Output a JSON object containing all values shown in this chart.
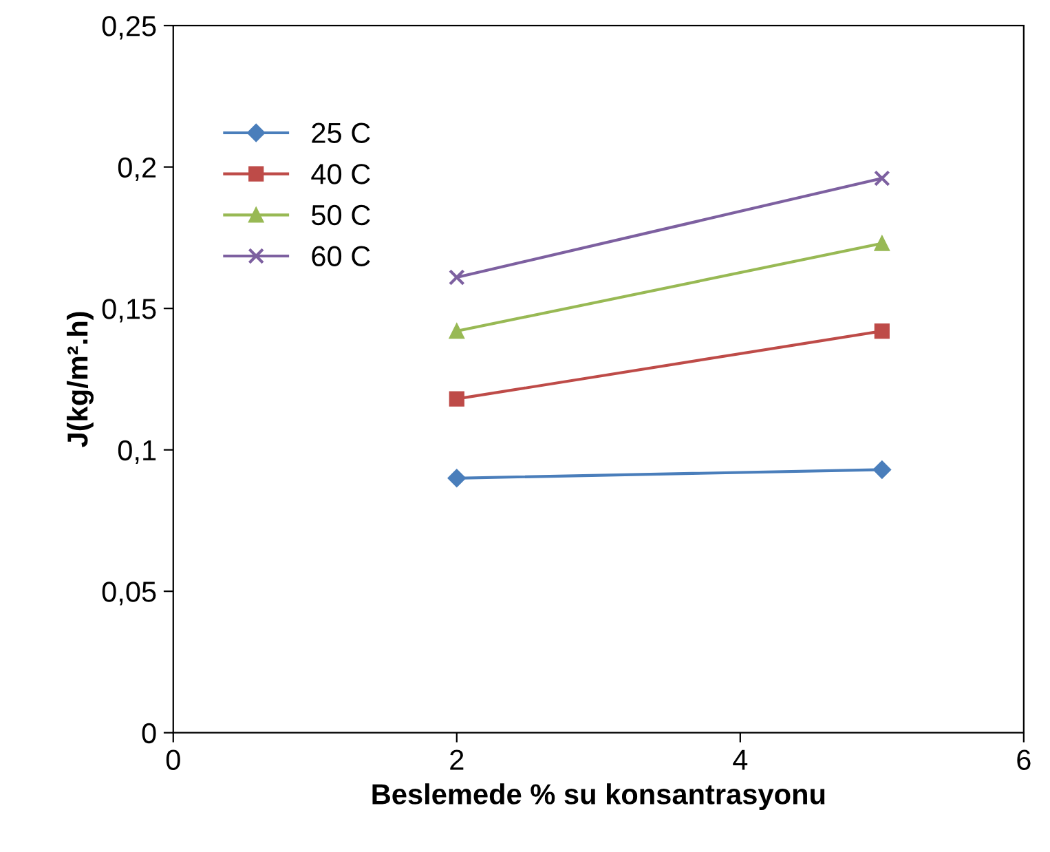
{
  "chart_data": {
    "type": "line",
    "xlabel": "Beslemede % su konsantrasyonu",
    "ylabel": "J(kg/m².h)",
    "x": [
      2,
      5
    ],
    "series": [
      {
        "name": "25 C",
        "color": "#4a7ebb",
        "marker": "diamond",
        "values": [
          0.09,
          0.093
        ]
      },
      {
        "name": "40 C",
        "color": "#be4b48",
        "marker": "square",
        "values": [
          0.118,
          0.142
        ]
      },
      {
        "name": "50 C",
        "color": "#98b954",
        "marker": "triangle",
        "values": [
          0.142,
          0.173
        ]
      },
      {
        "name": "60 C",
        "color": "#7d60a0",
        "marker": "cross",
        "values": [
          0.161,
          0.196
        ]
      }
    ],
    "xlim": [
      0,
      6
    ],
    "xticks": [
      0,
      2,
      4,
      6
    ],
    "ylim": [
      0,
      0.25
    ],
    "yticks": [
      {
        "value": 0,
        "label": "0"
      },
      {
        "value": 0.05,
        "label": "0,05"
      },
      {
        "value": 0.1,
        "label": "0,1"
      },
      {
        "value": 0.15,
        "label": "0,15"
      },
      {
        "value": 0.2,
        "label": "0,2"
      },
      {
        "value": 0.25,
        "label": "0,25"
      }
    ],
    "legend": "top left",
    "grid": false,
    "line_style": "solid"
  }
}
